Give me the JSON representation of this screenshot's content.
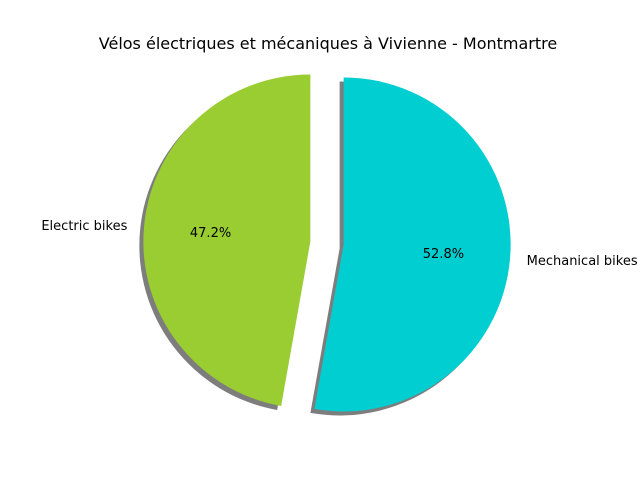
{
  "chart_data": {
    "type": "pie",
    "title": "Vélos électriques et mécaniques à Vivienne - Montmartre",
    "slices": [
      {
        "label": "Electric bikes",
        "value": 47.2,
        "pct_label": "47.2%",
        "color": "#9acd32",
        "explode": 0.1
      },
      {
        "label": "Mechanical bikes",
        "value": 52.8,
        "pct_label": "52.8%",
        "color": "#00ced1",
        "explode": 0.1
      }
    ],
    "start_angle_deg": 90,
    "direction": "counterclockwise",
    "shadow": true,
    "shadow_color": "#666666",
    "background": "#ffffff"
  }
}
